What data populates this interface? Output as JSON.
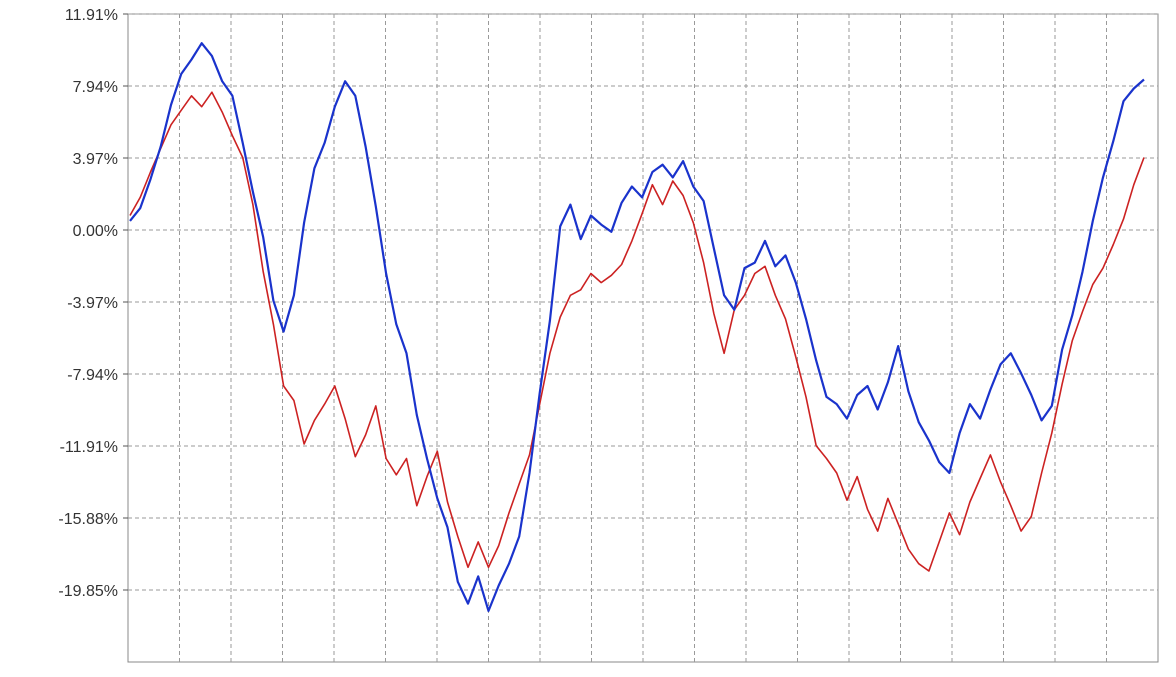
{
  "chart_data": {
    "type": "line",
    "title": "",
    "xlabel": "",
    "ylabel": "",
    "ylim": [
      -23.82,
      11.91
    ],
    "y_ticks": [
      "11.91%",
      "7.94%",
      "3.97%",
      "0.00%",
      "-3.97%",
      "-7.94%",
      "-11.91%",
      "-15.88%",
      "-19.85%"
    ],
    "grid": true,
    "grid_style": "dashed",
    "legend": "none",
    "series": [
      {
        "color": "#1a33cc",
        "values": [
          0.5,
          1.2,
          2.8,
          4.6,
          6.9,
          8.6,
          9.4,
          10.3,
          9.6,
          8.2,
          7.4,
          4.8,
          2.1,
          -0.4,
          -3.9,
          -5.6,
          -3.6,
          0.4,
          3.4,
          4.8,
          6.8,
          8.2,
          7.4,
          4.6,
          1.3,
          -2.4,
          -5.2,
          -6.8,
          -10.2,
          -12.6,
          -14.8,
          -16.4,
          -19.4,
          -20.6,
          -19.1,
          -21.0,
          -19.6,
          -18.4,
          -16.9,
          -13.4,
          -9.0,
          -5.0,
          0.2,
          1.4,
          -0.5,
          0.8,
          0.3,
          -0.1,
          1.5,
          2.4,
          1.8,
          3.2,
          3.6,
          2.9,
          3.8,
          2.4,
          1.6,
          -1.0,
          -3.6,
          -4.4,
          -2.1,
          -1.8,
          -0.6,
          -2.0,
          -1.4,
          -2.9,
          -4.9,
          -7.2,
          -9.2,
          -9.6,
          -10.4,
          -9.1,
          -8.6,
          -9.9,
          -8.4,
          -6.4,
          -8.9,
          -10.6,
          -11.6,
          -12.8,
          -13.4,
          -11.2,
          -9.6,
          -10.4,
          -8.8,
          -7.4,
          -6.8,
          -7.9,
          -9.1,
          -10.5,
          -9.7,
          -6.6,
          -4.7,
          -2.3,
          0.5,
          2.9,
          4.9,
          7.1,
          7.8,
          8.3
        ]
      },
      {
        "color": "#cc2222",
        "values": [
          0.8,
          1.8,
          3.2,
          4.5,
          5.8,
          6.6,
          7.4,
          6.8,
          7.6,
          6.5,
          5.2,
          4.0,
          1.4,
          -2.3,
          -5.2,
          -8.6,
          -9.4,
          -11.8,
          -10.5,
          -9.6,
          -8.6,
          -10.4,
          -12.5,
          -11.3,
          -9.7,
          -12.6,
          -13.5,
          -12.6,
          -15.2,
          -13.6,
          -12.2,
          -15.0,
          -16.9,
          -18.6,
          -17.2,
          -18.6,
          -17.4,
          -15.6,
          -14.0,
          -12.4,
          -9.6,
          -6.8,
          -4.8,
          -3.6,
          -3.3,
          -2.4,
          -2.9,
          -2.5,
          -1.9,
          -0.6,
          0.9,
          2.5,
          1.4,
          2.7,
          1.9,
          0.4,
          -1.8,
          -4.6,
          -6.8,
          -4.4,
          -3.6,
          -2.4,
          -2.0,
          -3.6,
          -4.9,
          -7.0,
          -9.2,
          -11.9,
          -12.6,
          -13.4,
          -14.9,
          -13.6,
          -15.4,
          -16.6,
          -14.8,
          -16.2,
          -17.6,
          -18.4,
          -18.8,
          -17.2,
          -15.6,
          -16.8,
          -15.0,
          -13.7,
          -12.4,
          -13.9,
          -15.2,
          -16.6,
          -15.8,
          -13.4,
          -11.2,
          -8.5,
          -6.1,
          -4.5,
          -3.0,
          -2.1,
          -0.8,
          0.6,
          2.5,
          4.0
        ]
      }
    ]
  }
}
